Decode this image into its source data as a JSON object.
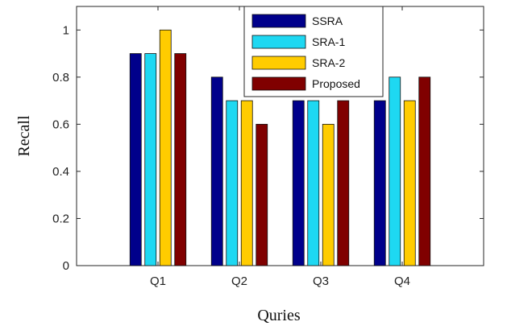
{
  "chart_data": {
    "type": "bar",
    "title": "",
    "xlabel": "Quries",
    "ylabel": "Recall",
    "categories": [
      "Q1",
      "Q2",
      "Q3",
      "Q4"
    ],
    "ylim": [
      0,
      1.1
    ],
    "yticks": [
      0,
      0.2,
      0.4,
      0.6,
      0.8,
      1
    ],
    "grid": false,
    "legend_position": "top-center",
    "series": [
      {
        "name": "SSRA",
        "color": "#00008B",
        "values": [
          0.9,
          0.8,
          0.7,
          0.7
        ]
      },
      {
        "name": "SRA-1",
        "color": "#1ED8F2",
        "values": [
          0.9,
          0.7,
          0.7,
          0.8
        ]
      },
      {
        "name": "SRA-2",
        "color": "#FFCC00",
        "values": [
          1.0,
          0.7,
          0.6,
          0.7
        ]
      },
      {
        "name": "Proposed",
        "color": "#800000",
        "values": [
          0.9,
          0.6,
          0.7,
          0.8
        ]
      }
    ]
  }
}
